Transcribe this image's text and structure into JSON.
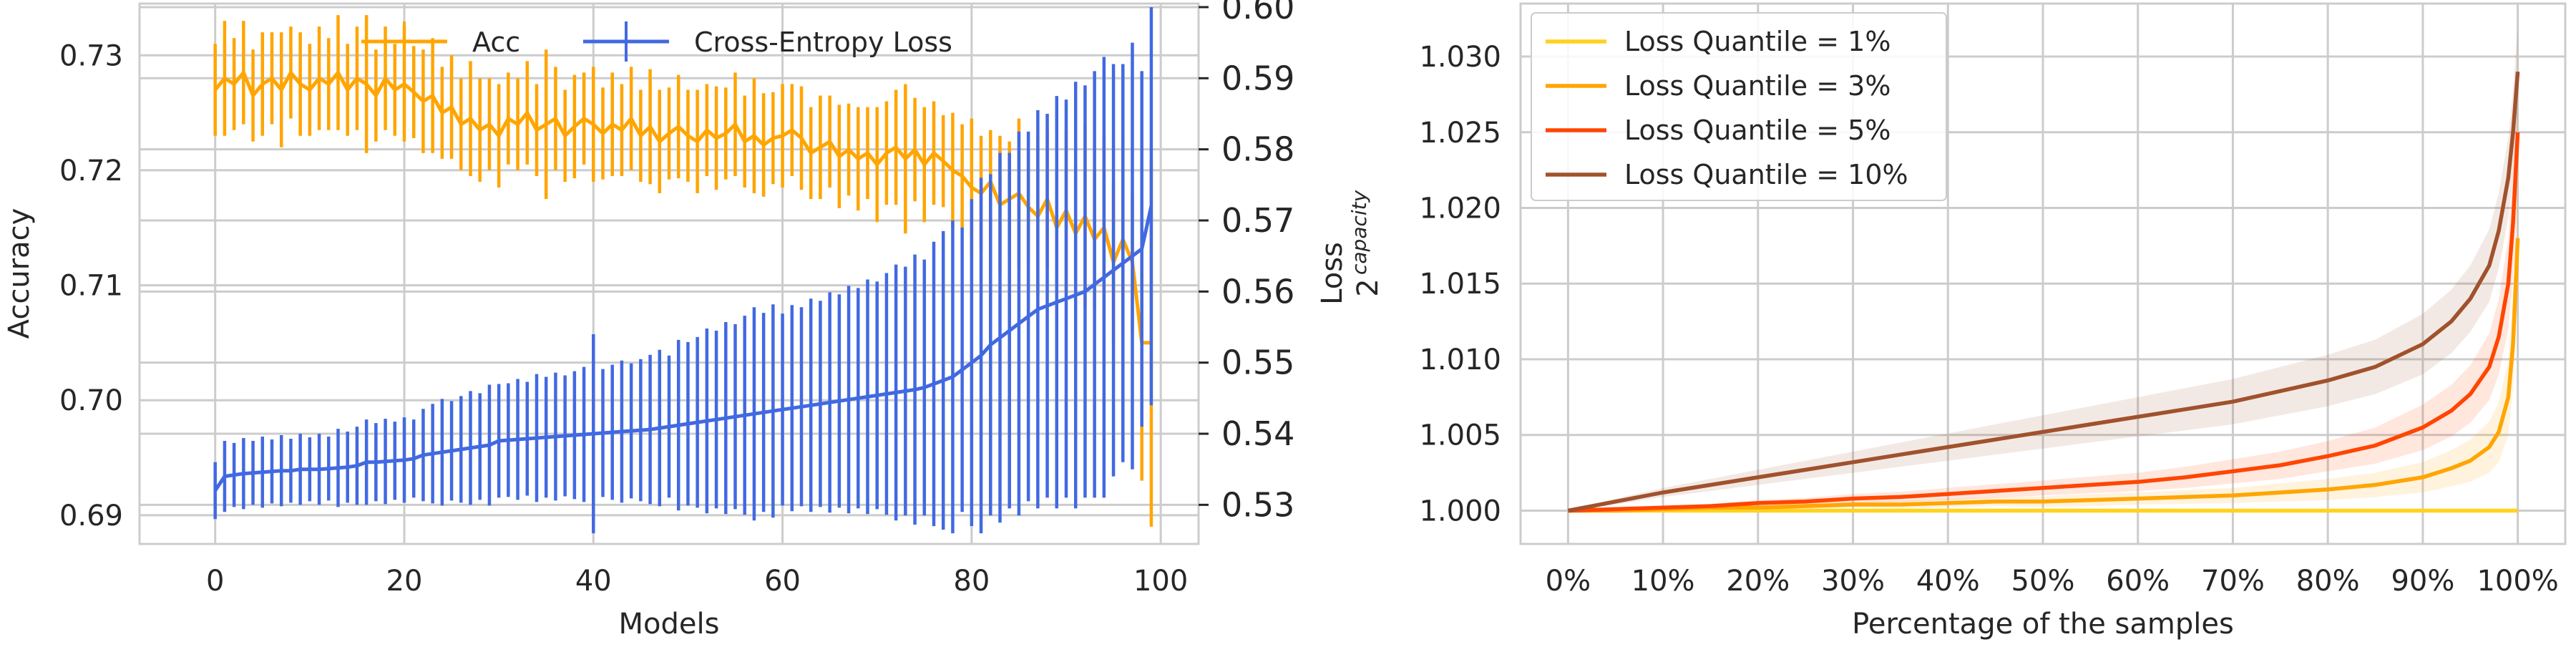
{
  "chart_data": [
    {
      "type": "line",
      "title": "",
      "xlabel": "Models",
      "ylabel": "Accuracy",
      "y2label": "Loss",
      "xlim": [
        -8,
        104
      ],
      "ylim": [
        0.6875,
        0.7345
      ],
      "y2lim": [
        0.5245,
        0.6005
      ],
      "xticks": [
        0,
        20,
        40,
        60,
        80,
        100
      ],
      "xtick_labels": [
        "0",
        "20",
        "40",
        "60",
        "80",
        "100"
      ],
      "yticks": [
        0.69,
        0.7,
        0.71,
        0.72,
        0.73
      ],
      "ytick_labels": [
        "0.69",
        "0.70",
        "0.71",
        "0.72",
        "0.73"
      ],
      "y2ticks": [
        0.53,
        0.54,
        0.55,
        0.56,
        0.57,
        0.58,
        0.59,
        0.6
      ],
      "y2tick_labels": [
        "0.53",
        "0.54",
        "0.55",
        "0.56",
        "0.57",
        "0.58",
        "0.59",
        "0.60"
      ],
      "grid": true,
      "legend_position": "top-center",
      "x": [
        0,
        1,
        2,
        3,
        4,
        5,
        6,
        7,
        8,
        9,
        10,
        11,
        12,
        13,
        14,
        15,
        16,
        17,
        18,
        19,
        20,
        21,
        22,
        23,
        24,
        25,
        26,
        27,
        28,
        29,
        30,
        31,
        32,
        33,
        34,
        35,
        36,
        37,
        38,
        39,
        40,
        41,
        42,
        43,
        44,
        45,
        46,
        47,
        48,
        49,
        50,
        51,
        52,
        53,
        54,
        55,
        56,
        57,
        58,
        59,
        60,
        61,
        62,
        63,
        64,
        65,
        66,
        67,
        68,
        69,
        70,
        71,
        72,
        73,
        74,
        75,
        76,
        77,
        78,
        79,
        80,
        81,
        82,
        83,
        84,
        85,
        86,
        87,
        88,
        89,
        90,
        91,
        92,
        93,
        94,
        95,
        96,
        97,
        98,
        99
      ],
      "series": [
        {
          "name": "Acc",
          "color": "#FFA500",
          "axis": "left",
          "values": [
            0.727,
            0.728,
            0.7275,
            0.7285,
            0.7265,
            0.7275,
            0.728,
            0.727,
            0.7285,
            0.7275,
            0.727,
            0.728,
            0.7275,
            0.7285,
            0.727,
            0.728,
            0.7275,
            0.7265,
            0.728,
            0.727,
            0.7275,
            0.7268,
            0.726,
            0.7265,
            0.725,
            0.7255,
            0.724,
            0.7245,
            0.7235,
            0.724,
            0.723,
            0.7245,
            0.724,
            0.725,
            0.7235,
            0.724,
            0.7245,
            0.723,
            0.7238,
            0.7245,
            0.724,
            0.7232,
            0.724,
            0.7235,
            0.7245,
            0.723,
            0.7238,
            0.7225,
            0.7232,
            0.7238,
            0.723,
            0.7225,
            0.7235,
            0.7228,
            0.7232,
            0.724,
            0.7225,
            0.723,
            0.7222,
            0.7228,
            0.723,
            0.7235,
            0.7228,
            0.7215,
            0.722,
            0.7225,
            0.7212,
            0.7218,
            0.721,
            0.7215,
            0.7205,
            0.7215,
            0.722,
            0.721,
            0.7218,
            0.7205,
            0.7215,
            0.7208,
            0.72,
            0.7195,
            0.7185,
            0.718,
            0.719,
            0.717,
            0.7175,
            0.718,
            0.7168,
            0.716,
            0.7175,
            0.715,
            0.7165,
            0.7145,
            0.716,
            0.714,
            0.715,
            0.712,
            0.714,
            0.712,
            0.705,
            0.705
          ],
          "errors": [
            0.004,
            0.005,
            0.004,
            0.0045,
            0.004,
            0.0045,
            0.004,
            0.005,
            0.004,
            0.0045,
            0.004,
            0.0045,
            0.004,
            0.005,
            0.004,
            0.0045,
            0.006,
            0.004,
            0.0045,
            0.004,
            0.005,
            0.004,
            0.0045,
            0.005,
            0.004,
            0.0045,
            0.004,
            0.005,
            0.0045,
            0.004,
            0.0045,
            0.004,
            0.004,
            0.0045,
            0.004,
            0.0065,
            0.0045,
            0.004,
            0.0045,
            0.004,
            0.005,
            0.004,
            0.0045,
            0.004,
            0.0045,
            0.004,
            0.005,
            0.0045,
            0.004,
            0.0045,
            0.004,
            0.0045,
            0.004,
            0.0045,
            0.004,
            0.0045,
            0.004,
            0.005,
            0.0045,
            0.004,
            0.0045,
            0.004,
            0.0045,
            0.004,
            0.0045,
            0.004,
            0.0045,
            0.004,
            0.0045,
            0.004,
            0.005,
            0.0045,
            0.005,
            0.0065,
            0.0045,
            0.005,
            0.0045,
            0.004,
            0.005,
            0.0045,
            0.006,
            0.005,
            0.0045,
            0.006,
            0.005,
            0.0065,
            0.005,
            0.007,
            0.006,
            0.005,
            0.007,
            0.006,
            0.008,
            0.006,
            0.008,
            0.007,
            0.0085,
            0.006,
            0.012,
            0.016
          ]
        },
        {
          "name": "Cross-Entropy Loss",
          "color": "#4169E1",
          "axis": "right",
          "values": [
            0.532,
            0.534,
            0.5342,
            0.5344,
            0.5345,
            0.5346,
            0.5347,
            0.5348,
            0.5348,
            0.535,
            0.535,
            0.535,
            0.5351,
            0.5352,
            0.5353,
            0.5355,
            0.536,
            0.536,
            0.5361,
            0.5362,
            0.5363,
            0.5365,
            0.537,
            0.5372,
            0.5374,
            0.5376,
            0.5378,
            0.538,
            0.5382,
            0.5384,
            0.539,
            0.5391,
            0.5392,
            0.5393,
            0.5394,
            0.5395,
            0.5396,
            0.5397,
            0.5398,
            0.5399,
            0.54,
            0.5401,
            0.5402,
            0.5403,
            0.5404,
            0.5405,
            0.5406,
            0.5408,
            0.541,
            0.5412,
            0.5414,
            0.5416,
            0.5418,
            0.542,
            0.5422,
            0.5424,
            0.5426,
            0.5428,
            0.543,
            0.5432,
            0.5434,
            0.5436,
            0.5438,
            0.544,
            0.5442,
            0.5444,
            0.5446,
            0.5448,
            0.545,
            0.5452,
            0.5454,
            0.5456,
            0.5458,
            0.546,
            0.5462,
            0.5465,
            0.547,
            0.5475,
            0.548,
            0.549,
            0.55,
            0.551,
            0.5525,
            0.5535,
            0.5545,
            0.5555,
            0.5565,
            0.5575,
            0.558,
            0.5585,
            0.559,
            0.5595,
            0.56,
            0.561,
            0.562,
            0.563,
            0.564,
            0.565,
            0.566,
            0.572
          ],
          "errors": [
            0.004,
            0.005,
            0.0045,
            0.005,
            0.0045,
            0.005,
            0.0045,
            0.005,
            0.0045,
            0.005,
            0.0045,
            0.005,
            0.0045,
            0.0055,
            0.005,
            0.0055,
            0.006,
            0.0055,
            0.006,
            0.0055,
            0.006,
            0.0055,
            0.0065,
            0.007,
            0.0075,
            0.007,
            0.0075,
            0.008,
            0.0075,
            0.0085,
            0.008,
            0.008,
            0.0085,
            0.008,
            0.009,
            0.0085,
            0.009,
            0.0085,
            0.009,
            0.0095,
            0.014,
            0.009,
            0.0095,
            0.01,
            0.0095,
            0.01,
            0.0105,
            0.011,
            0.01,
            0.012,
            0.0115,
            0.012,
            0.013,
            0.0125,
            0.0135,
            0.013,
            0.014,
            0.015,
            0.014,
            0.015,
            0.0135,
            0.0145,
            0.014,
            0.015,
            0.0145,
            0.0155,
            0.015,
            0.016,
            0.0155,
            0.0165,
            0.016,
            0.017,
            0.018,
            0.0175,
            0.019,
            0.018,
            0.02,
            0.021,
            0.022,
            0.02,
            0.023,
            0.025,
            0.024,
            0.026,
            0.025,
            0.027,
            0.026,
            0.028,
            0.027,
            0.029,
            0.028,
            0.03,
            0.029,
            0.03,
            0.031,
            0.029,
            0.028,
            0.03,
            0.025,
            0.028
          ]
        }
      ]
    },
    {
      "type": "line",
      "title": "",
      "xlabel": "Percentage of the samples",
      "ylabel": "2",
      "ylabel_superscript": "capacity",
      "xlim": [
        -0.05,
        1.05
      ],
      "ylim": [
        0.9978,
        1.0335
      ],
      "xticks": [
        0,
        0.1,
        0.2,
        0.3,
        0.4,
        0.5,
        0.6,
        0.7,
        0.8,
        0.9,
        1.0
      ],
      "xtick_labels": [
        "0%",
        "10%",
        "20%",
        "30%",
        "40%",
        "50%",
        "60%",
        "70%",
        "80%",
        "90%",
        "100%"
      ],
      "yticks": [
        1.0,
        1.005,
        1.01,
        1.015,
        1.02,
        1.025,
        1.03
      ],
      "ytick_labels": [
        "1.000",
        "1.005",
        "1.010",
        "1.015",
        "1.020",
        "1.025",
        "1.030"
      ],
      "grid": true,
      "legend_position": "top-left",
      "x": [
        0,
        0.05,
        0.1,
        0.15,
        0.2,
        0.25,
        0.3,
        0.35,
        0.4,
        0.45,
        0.5,
        0.55,
        0.6,
        0.65,
        0.7,
        0.75,
        0.8,
        0.85,
        0.9,
        0.93,
        0.95,
        0.97,
        0.98,
        0.99,
        0.995,
        1.0
      ],
      "series": [
        {
          "name": "Loss Quantile = 1%",
          "color": "#FFD21F",
          "values": [
            1.0,
            1.0,
            1.0,
            1.0,
            1.0,
            1.0,
            1.0,
            1.0,
            1.0,
            1.0,
            1.0,
            1.0,
            1.0,
            1.0,
            1.0,
            1.0,
            1.0,
            1.0,
            1.0,
            1.0,
            1.0,
            1.0,
            1.0,
            1.0,
            1.0,
            1.0
          ],
          "band": [
            0,
            0,
            0,
            0,
            0,
            0,
            0,
            0,
            0,
            0,
            0,
            0,
            0,
            0,
            0,
            0,
            0,
            0,
            0,
            0,
            0,
            0,
            0,
            0,
            0,
            0
          ]
        },
        {
          "name": "Loss Quantile = 3%",
          "color": "#FFA500",
          "values": [
            1.0,
            1.0,
            1.0001,
            1.0002,
            1.0002,
            1.0003,
            1.0004,
            1.0004,
            1.0005,
            1.0006,
            1.0006,
            1.0007,
            1.0008,
            1.0009,
            1.001,
            1.0012,
            1.0014,
            1.0017,
            1.0022,
            1.0028,
            1.0033,
            1.0042,
            1.0052,
            1.0075,
            1.011,
            1.018
          ],
          "band": [
            0,
            5e-05,
            0.0001,
            0.0001,
            0.00015,
            0.0002,
            0.0002,
            0.00025,
            0.0003,
            0.0003,
            0.00035,
            0.0004,
            0.0004,
            0.00045,
            0.0005,
            0.0006,
            0.0007,
            0.0008,
            0.001,
            0.0012,
            0.0014,
            0.0017,
            0.002,
            0.0025,
            0.003,
            0.004
          ]
        },
        {
          "name": "Loss Quantile = 5%",
          "color": "#FF4500",
          "values": [
            1.0,
            1.0001,
            1.0002,
            1.0003,
            1.0005,
            1.0006,
            1.0008,
            1.0009,
            1.0011,
            1.0013,
            1.0015,
            1.0017,
            1.0019,
            1.0022,
            1.0026,
            1.003,
            1.0036,
            1.0043,
            1.0055,
            1.0066,
            1.0077,
            1.0095,
            1.0115,
            1.015,
            1.019,
            1.025
          ],
          "band": [
            0,
            0.0001,
            0.0001,
            0.00015,
            0.0002,
            0.00025,
            0.0003,
            0.00035,
            0.0004,
            0.00045,
            0.0005,
            0.00055,
            0.0006,
            0.0007,
            0.0008,
            0.0009,
            0.001,
            0.0012,
            0.0015,
            0.0017,
            0.0019,
            0.0022,
            0.0025,
            0.003,
            0.0035,
            0.004
          ]
        },
        {
          "name": "Loss Quantile = 10%",
          "color": "#A0522D",
          "values": [
            1.0,
            1.0006,
            1.0012,
            1.0017,
            1.0022,
            1.0027,
            1.0032,
            1.0037,
            1.0042,
            1.0047,
            1.0052,
            1.0057,
            1.0062,
            1.0067,
            1.0072,
            1.0079,
            1.0086,
            1.0095,
            1.011,
            1.0125,
            1.014,
            1.0162,
            1.0185,
            1.022,
            1.025,
            1.029
          ],
          "band": [
            0,
            0.0002,
            0.0003,
            0.0004,
            0.0005,
            0.0006,
            0.0007,
            0.0008,
            0.0009,
            0.001,
            0.0011,
            0.0012,
            0.0013,
            0.0014,
            0.0015,
            0.0016,
            0.0017,
            0.0018,
            0.002,
            0.0021,
            0.0022,
            0.0024,
            0.0025,
            0.0027,
            0.0028,
            0.003
          ]
        }
      ]
    }
  ]
}
